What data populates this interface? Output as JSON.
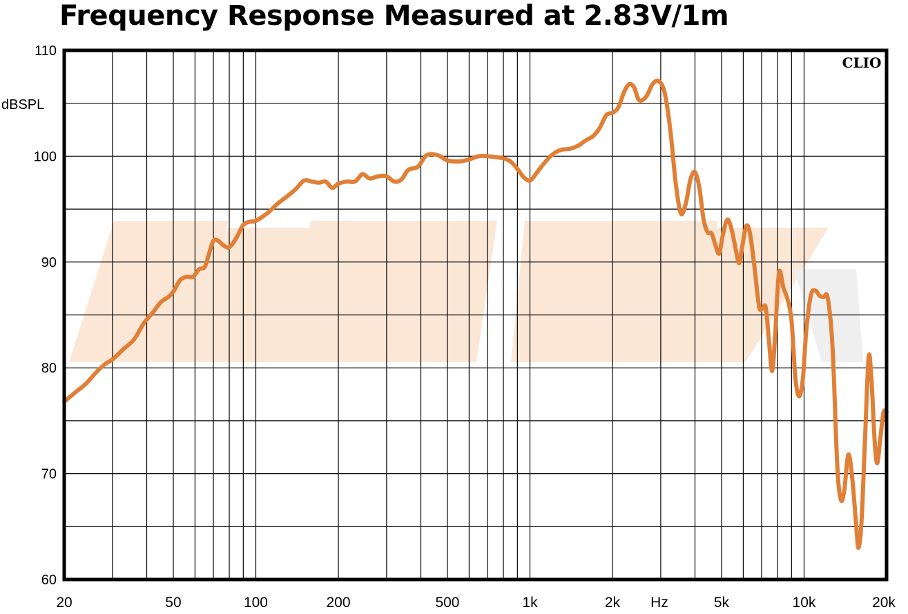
{
  "chart_data": {
    "type": "line",
    "title": "Frequency Response Measured at 2.83V/1m",
    "ylabel": "dBSPL",
    "xlabel": "Hz",
    "brand": "CLIO",
    "x_scale": "log",
    "xlim": [
      20,
      20000
    ],
    "ylim": [
      60,
      110
    ],
    "grid": true,
    "y_ticks": [
      {
        "value": 110,
        "label": "110"
      },
      {
        "value": 100,
        "label": "100"
      },
      {
        "value": 90,
        "label": "90"
      },
      {
        "value": 80,
        "label": "80"
      },
      {
        "value": 70,
        "label": "70"
      },
      {
        "value": 60,
        "label": "60"
      }
    ],
    "x_ticks": [
      {
        "value": 20,
        "label": "20"
      },
      {
        "value": 50,
        "label": "50"
      },
      {
        "value": 100,
        "label": "100"
      },
      {
        "value": 200,
        "label": "200"
      },
      {
        "value": 500,
        "label": "500"
      },
      {
        "value": 1000,
        "label": "1k"
      },
      {
        "value": 2000,
        "label": "2k"
      },
      {
        "value": 5000,
        "label": "5k"
      },
      {
        "value": 10000,
        "label": "10k"
      },
      {
        "value": 20000,
        "label": "20k"
      }
    ],
    "series": [
      {
        "color": "#E07F36",
        "points": [
          [
            20,
            76.8
          ],
          [
            22,
            77.7
          ],
          [
            24,
            78.5
          ],
          [
            26,
            79.5
          ],
          [
            28,
            80.3
          ],
          [
            30,
            80.8
          ],
          [
            33,
            81.8
          ],
          [
            36,
            82.7
          ],
          [
            39,
            84.2
          ],
          [
            42,
            85.2
          ],
          [
            45,
            86.2
          ],
          [
            48,
            86.7
          ],
          [
            50,
            87.2
          ],
          [
            53,
            88.3
          ],
          [
            56,
            88.6
          ],
          [
            59,
            88.6
          ],
          [
            62,
            89.3
          ],
          [
            65,
            89.5
          ],
          [
            67,
            90.5
          ],
          [
            70,
            92.0
          ],
          [
            73,
            92.0
          ],
          [
            76,
            91.6
          ],
          [
            80,
            91.4
          ],
          [
            85,
            92.3
          ],
          [
            90,
            93.5
          ],
          [
            95,
            93.8
          ],
          [
            100,
            93.9
          ],
          [
            110,
            94.6
          ],
          [
            120,
            95.5
          ],
          [
            130,
            96.2
          ],
          [
            140,
            96.9
          ],
          [
            150,
            97.7
          ],
          [
            160,
            97.6
          ],
          [
            170,
            97.5
          ],
          [
            180,
            97.6
          ],
          [
            190,
            97.0
          ],
          [
            200,
            97.4
          ],
          [
            215,
            97.6
          ],
          [
            230,
            97.6
          ],
          [
            245,
            98.3
          ],
          [
            260,
            97.9
          ],
          [
            280,
            98.1
          ],
          [
            300,
            98.1
          ],
          [
            320,
            97.6
          ],
          [
            340,
            97.8
          ],
          [
            360,
            98.7
          ],
          [
            390,
            99.0
          ],
          [
            420,
            100.1
          ],
          [
            460,
            100.1
          ],
          [
            500,
            99.6
          ],
          [
            550,
            99.5
          ],
          [
            600,
            99.7
          ],
          [
            650,
            100.0
          ],
          [
            700,
            100.0
          ],
          [
            750,
            99.9
          ],
          [
            800,
            99.8
          ],
          [
            850,
            99.5
          ],
          [
            900,
            98.8
          ],
          [
            950,
            98.0
          ],
          [
            1000,
            97.7
          ],
          [
            1050,
            98.3
          ],
          [
            1100,
            99.0
          ],
          [
            1200,
            100.1
          ],
          [
            1300,
            100.6
          ],
          [
            1400,
            100.7
          ],
          [
            1500,
            101.0
          ],
          [
            1600,
            101.5
          ],
          [
            1700,
            101.9
          ],
          [
            1800,
            102.7
          ],
          [
            1900,
            103.9
          ],
          [
            2000,
            104.1
          ],
          [
            2100,
            104.6
          ],
          [
            2200,
            106.0
          ],
          [
            2300,
            106.8
          ],
          [
            2400,
            106.5
          ],
          [
            2500,
            105.3
          ],
          [
            2650,
            105.6
          ],
          [
            2800,
            106.8
          ],
          [
            2950,
            107.1
          ],
          [
            3100,
            106.0
          ],
          [
            3250,
            102.5
          ],
          [
            3400,
            97.5
          ],
          [
            3550,
            94.6
          ],
          [
            3700,
            95.5
          ],
          [
            3850,
            97.8
          ],
          [
            4000,
            98.5
          ],
          [
            4150,
            97.0
          ],
          [
            4300,
            94.0
          ],
          [
            4450,
            92.8
          ],
          [
            4600,
            92.7
          ],
          [
            4750,
            91.6
          ],
          [
            4900,
            90.8
          ],
          [
            5050,
            92.5
          ],
          [
            5250,
            94.0
          ],
          [
            5450,
            93.0
          ],
          [
            5650,
            91.0
          ],
          [
            5800,
            89.9
          ],
          [
            5950,
            91.5
          ],
          [
            6150,
            93.4
          ],
          [
            6350,
            92.7
          ],
          [
            6600,
            89.4
          ],
          [
            6850,
            85.8
          ],
          [
            7050,
            85.6
          ],
          [
            7250,
            85.7
          ],
          [
            7450,
            82.5
          ],
          [
            7650,
            79.7
          ],
          [
            7850,
            83.3
          ],
          [
            8100,
            89.0
          ],
          [
            8400,
            87.6
          ],
          [
            8700,
            86.5
          ],
          [
            9000,
            84.5
          ],
          [
            9300,
            79.0
          ],
          [
            9600,
            77.3
          ],
          [
            9900,
            79.0
          ],
          [
            10200,
            83.7
          ],
          [
            10600,
            86.9
          ],
          [
            11000,
            87.3
          ],
          [
            11400,
            86.8
          ],
          [
            11800,
            86.7
          ],
          [
            12200,
            86.6
          ],
          [
            12700,
            82.0
          ],
          [
            13200,
            71.0
          ],
          [
            13600,
            67.6
          ],
          [
            14000,
            68.3
          ],
          [
            14500,
            71.8
          ],
          [
            15000,
            69.5
          ],
          [
            15500,
            65.0
          ],
          [
            15800,
            63.0
          ],
          [
            16200,
            65.5
          ],
          [
            16700,
            73.5
          ],
          [
            17200,
            81.0
          ],
          [
            17600,
            79.0
          ],
          [
            18100,
            73.0
          ],
          [
            18500,
            71.0
          ],
          [
            19000,
            73.5
          ],
          [
            19500,
            75.8
          ],
          [
            20000,
            75.8
          ]
        ]
      }
    ]
  }
}
